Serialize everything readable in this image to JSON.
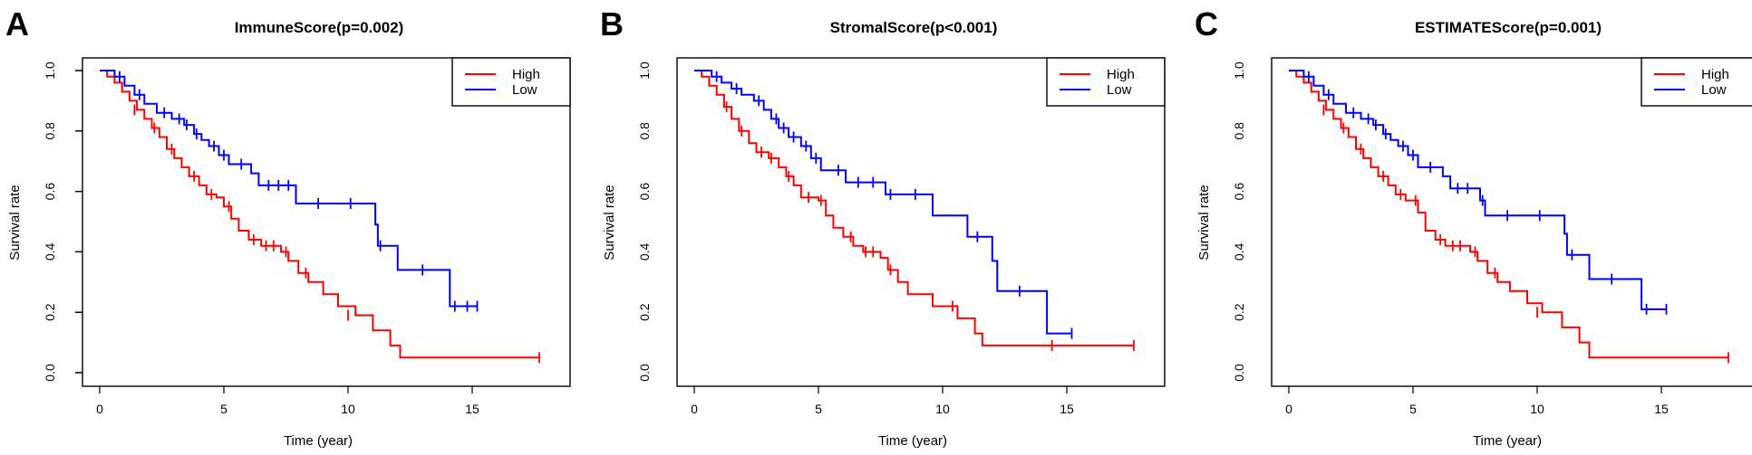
{
  "colors": {
    "high": "#FF0000",
    "low": "#0000FF",
    "axis": "#000000"
  },
  "panels": [
    {
      "letter": "A",
      "title": "ImmuneScore(p=0.002)"
    },
    {
      "letter": "B",
      "title": "StromalScore(p<0.001)"
    },
    {
      "letter": "C",
      "title": "ESTIMATEScore(p=0.001)"
    }
  ],
  "chart_data": [
    {
      "type": "line",
      "title": "ImmuneScore(p=0.002)",
      "xlabel": "Time (year)",
      "ylabel": "Survival rate",
      "xlim": [
        0,
        18
      ],
      "ylim": [
        0,
        1
      ],
      "xticks": [
        "0",
        "5",
        "10",
        "15"
      ],
      "yticks": [
        "0.0",
        "0.2",
        "0.4",
        "0.6",
        "0.8",
        "1.0"
      ],
      "legend": {
        "position": "top-right",
        "entries": [
          "High",
          "Low"
        ]
      },
      "series": [
        {
          "name": "High",
          "color": "#FF0000",
          "steps": [
            [
              0,
              1.0
            ],
            [
              0.3,
              0.98
            ],
            [
              0.6,
              0.96
            ],
            [
              0.9,
              0.93
            ],
            [
              1.2,
              0.9
            ],
            [
              1.5,
              0.87
            ],
            [
              1.8,
              0.84
            ],
            [
              2.1,
              0.81
            ],
            [
              2.4,
              0.78
            ],
            [
              2.7,
              0.74
            ],
            [
              3.0,
              0.71
            ],
            [
              3.3,
              0.68
            ],
            [
              3.6,
              0.65
            ],
            [
              4.0,
              0.62
            ],
            [
              4.3,
              0.59
            ],
            [
              4.7,
              0.58
            ],
            [
              5.0,
              0.55
            ],
            [
              5.3,
              0.51
            ],
            [
              5.6,
              0.47
            ],
            [
              6.0,
              0.44
            ],
            [
              6.5,
              0.42
            ],
            [
              7.3,
              0.4
            ],
            [
              7.6,
              0.37
            ],
            [
              8.0,
              0.33
            ],
            [
              8.4,
              0.3
            ],
            [
              9.0,
              0.26
            ],
            [
              9.6,
              0.22
            ],
            [
              10.3,
              0.19
            ],
            [
              11.0,
              0.14
            ],
            [
              11.7,
              0.09
            ],
            [
              12.1,
              0.05
            ]
          ],
          "end": 17.7,
          "censors": [
            [
              1.4,
              0.87
            ],
            [
              2.2,
              0.81
            ],
            [
              2.9,
              0.74
            ],
            [
              3.8,
              0.65
            ],
            [
              4.5,
              0.59
            ],
            [
              5.2,
              0.55
            ],
            [
              6.2,
              0.44
            ],
            [
              6.7,
              0.42
            ],
            [
              7.0,
              0.42
            ],
            [
              7.5,
              0.4
            ],
            [
              8.3,
              0.33
            ],
            [
              10.0,
              0.19
            ],
            [
              17.7,
              0.05
            ]
          ]
        },
        {
          "name": "Low",
          "color": "#0000FF",
          "steps": [
            [
              0,
              1.0
            ],
            [
              0.6,
              0.98
            ],
            [
              1.0,
              0.95
            ],
            [
              1.4,
              0.92
            ],
            [
              1.8,
              0.89
            ],
            [
              2.3,
              0.86
            ],
            [
              2.9,
              0.84
            ],
            [
              3.4,
              0.82
            ],
            [
              3.8,
              0.79
            ],
            [
              4.1,
              0.77
            ],
            [
              4.4,
              0.75
            ],
            [
              4.8,
              0.72
            ],
            [
              5.2,
              0.69
            ],
            [
              6.1,
              0.66
            ],
            [
              6.4,
              0.62
            ],
            [
              7.9,
              0.56
            ],
            [
              11.1,
              0.49
            ],
            [
              11.2,
              0.42
            ],
            [
              12.0,
              0.34
            ],
            [
              14.1,
              0.22
            ]
          ],
          "end": 15.2,
          "censors": [
            [
              0.8,
              0.98
            ],
            [
              1.6,
              0.92
            ],
            [
              2.6,
              0.86
            ],
            [
              3.2,
              0.84
            ],
            [
              3.5,
              0.82
            ],
            [
              3.9,
              0.79
            ],
            [
              4.6,
              0.75
            ],
            [
              5.0,
              0.72
            ],
            [
              5.7,
              0.69
            ],
            [
              6.8,
              0.62
            ],
            [
              7.2,
              0.62
            ],
            [
              7.6,
              0.62
            ],
            [
              8.8,
              0.56
            ],
            [
              10.1,
              0.56
            ],
            [
              11.3,
              0.42
            ],
            [
              13.0,
              0.34
            ],
            [
              14.3,
              0.22
            ],
            [
              14.8,
              0.22
            ],
            [
              15.2,
              0.22
            ]
          ]
        }
      ]
    },
    {
      "type": "line",
      "title": "StromalScore(p<0.001)",
      "xlabel": "Time (year)",
      "ylabel": "Survival rate",
      "xlim": [
        0,
        18
      ],
      "ylim": [
        0,
        1
      ],
      "xticks": [
        "0",
        "5",
        "10",
        "15"
      ],
      "yticks": [
        "0.0",
        "0.2",
        "0.4",
        "0.6",
        "0.8",
        "1.0"
      ],
      "legend": {
        "position": "top-right",
        "entries": [
          "High",
          "Low"
        ]
      },
      "series": [
        {
          "name": "High",
          "color": "#FF0000",
          "steps": [
            [
              0,
              1.0
            ],
            [
              0.3,
              0.98
            ],
            [
              0.6,
              0.95
            ],
            [
              0.9,
              0.92
            ],
            [
              1.2,
              0.88
            ],
            [
              1.5,
              0.84
            ],
            [
              1.8,
              0.8
            ],
            [
              2.2,
              0.76
            ],
            [
              2.5,
              0.73
            ],
            [
              3.0,
              0.71
            ],
            [
              3.4,
              0.68
            ],
            [
              3.7,
              0.65
            ],
            [
              4.0,
              0.62
            ],
            [
              4.3,
              0.58
            ],
            [
              5.0,
              0.57
            ],
            [
              5.3,
              0.52
            ],
            [
              5.6,
              0.48
            ],
            [
              6.0,
              0.45
            ],
            [
              6.4,
              0.42
            ],
            [
              6.8,
              0.4
            ],
            [
              7.5,
              0.38
            ],
            [
              7.8,
              0.34
            ],
            [
              8.2,
              0.3
            ],
            [
              8.6,
              0.26
            ],
            [
              9.6,
              0.22
            ],
            [
              10.6,
              0.18
            ],
            [
              11.3,
              0.13
            ],
            [
              11.6,
              0.09
            ]
          ],
          "end": 17.7,
          "censors": [
            [
              1.3,
              0.88
            ],
            [
              1.9,
              0.8
            ],
            [
              2.7,
              0.73
            ],
            [
              3.1,
              0.71
            ],
            [
              3.8,
              0.65
            ],
            [
              4.6,
              0.58
            ],
            [
              5.1,
              0.57
            ],
            [
              6.3,
              0.45
            ],
            [
              6.9,
              0.4
            ],
            [
              7.2,
              0.4
            ],
            [
              7.9,
              0.34
            ],
            [
              10.4,
              0.22
            ],
            [
              14.4,
              0.09
            ],
            [
              17.7,
              0.09
            ]
          ]
        },
        {
          "name": "Low",
          "color": "#0000FF",
          "steps": [
            [
              0,
              1.0
            ],
            [
              0.7,
              0.98
            ],
            [
              1.1,
              0.96
            ],
            [
              1.5,
              0.94
            ],
            [
              1.9,
              0.92
            ],
            [
              2.4,
              0.9
            ],
            [
              2.8,
              0.87
            ],
            [
              3.1,
              0.84
            ],
            [
              3.4,
              0.81
            ],
            [
              3.8,
              0.78
            ],
            [
              4.3,
              0.75
            ],
            [
              4.7,
              0.71
            ],
            [
              5.1,
              0.67
            ],
            [
              6.1,
              0.63
            ],
            [
              7.7,
              0.59
            ],
            [
              9.6,
              0.52
            ],
            [
              11.0,
              0.45
            ],
            [
              12.0,
              0.37
            ],
            [
              12.2,
              0.27
            ],
            [
              14.2,
              0.13
            ]
          ],
          "end": 15.2,
          "censors": [
            [
              0.9,
              0.98
            ],
            [
              1.7,
              0.94
            ],
            [
              2.6,
              0.9
            ],
            [
              3.3,
              0.84
            ],
            [
              3.6,
              0.81
            ],
            [
              4.0,
              0.78
            ],
            [
              4.5,
              0.75
            ],
            [
              4.9,
              0.71
            ],
            [
              5.8,
              0.67
            ],
            [
              6.6,
              0.63
            ],
            [
              7.2,
              0.63
            ],
            [
              7.9,
              0.59
            ],
            [
              8.9,
              0.59
            ],
            [
              11.4,
              0.45
            ],
            [
              13.1,
              0.27
            ],
            [
              15.2,
              0.13
            ]
          ]
        }
      ]
    },
    {
      "type": "line",
      "title": "ESTIMATEScore(p=0.001)",
      "xlabel": "Time (year)",
      "ylabel": "Survival rate",
      "xlim": [
        0,
        18
      ],
      "ylim": [
        0,
        1
      ],
      "xticks": [
        "0",
        "5",
        "10",
        "15"
      ],
      "yticks": [
        "0.0",
        "0.2",
        "0.4",
        "0.6",
        "0.8",
        "1.0"
      ],
      "legend": {
        "position": "top-right",
        "entries": [
          "High",
          "Low"
        ]
      },
      "series": [
        {
          "name": "High",
          "color": "#FF0000",
          "steps": [
            [
              0,
              1.0
            ],
            [
              0.3,
              0.98
            ],
            [
              0.6,
              0.96
            ],
            [
              0.9,
              0.93
            ],
            [
              1.2,
              0.9
            ],
            [
              1.5,
              0.87
            ],
            [
              1.8,
              0.84
            ],
            [
              2.1,
              0.81
            ],
            [
              2.4,
              0.78
            ],
            [
              2.7,
              0.74
            ],
            [
              3.0,
              0.71
            ],
            [
              3.3,
              0.68
            ],
            [
              3.6,
              0.65
            ],
            [
              4.0,
              0.62
            ],
            [
              4.3,
              0.59
            ],
            [
              4.7,
              0.57
            ],
            [
              5.2,
              0.53
            ],
            [
              5.5,
              0.47
            ],
            [
              5.9,
              0.44
            ],
            [
              6.3,
              0.42
            ],
            [
              7.3,
              0.4
            ],
            [
              7.6,
              0.37
            ],
            [
              8.0,
              0.33
            ],
            [
              8.4,
              0.3
            ],
            [
              8.9,
              0.27
            ],
            [
              9.6,
              0.23
            ],
            [
              10.2,
              0.2
            ],
            [
              11.0,
              0.15
            ],
            [
              11.7,
              0.1
            ],
            [
              12.1,
              0.05
            ]
          ],
          "end": 17.7,
          "censors": [
            [
              1.4,
              0.87
            ],
            [
              2.2,
              0.81
            ],
            [
              2.9,
              0.74
            ],
            [
              3.8,
              0.65
            ],
            [
              4.5,
              0.59
            ],
            [
              5.1,
              0.57
            ],
            [
              6.1,
              0.44
            ],
            [
              6.6,
              0.42
            ],
            [
              6.9,
              0.42
            ],
            [
              7.5,
              0.4
            ],
            [
              8.3,
              0.33
            ],
            [
              10.0,
              0.2
            ],
            [
              17.7,
              0.05
            ]
          ]
        },
        {
          "name": "Low",
          "color": "#0000FF",
          "steps": [
            [
              0,
              1.0
            ],
            [
              0.6,
              0.98
            ],
            [
              1.0,
              0.95
            ],
            [
              1.4,
              0.92
            ],
            [
              1.8,
              0.89
            ],
            [
              2.3,
              0.86
            ],
            [
              2.9,
              0.84
            ],
            [
              3.4,
              0.82
            ],
            [
              3.8,
              0.79
            ],
            [
              4.1,
              0.77
            ],
            [
              4.4,
              0.75
            ],
            [
              4.8,
              0.72
            ],
            [
              5.2,
              0.68
            ],
            [
              6.2,
              0.65
            ],
            [
              6.5,
              0.61
            ],
            [
              7.7,
              0.57
            ],
            [
              7.9,
              0.52
            ],
            [
              11.1,
              0.46
            ],
            [
              11.2,
              0.39
            ],
            [
              12.1,
              0.31
            ],
            [
              14.2,
              0.21
            ]
          ],
          "end": 15.2,
          "censors": [
            [
              0.8,
              0.98
            ],
            [
              1.6,
              0.92
            ],
            [
              2.6,
              0.86
            ],
            [
              3.2,
              0.84
            ],
            [
              3.5,
              0.82
            ],
            [
              3.9,
              0.79
            ],
            [
              4.6,
              0.75
            ],
            [
              5.0,
              0.72
            ],
            [
              5.7,
              0.68
            ],
            [
              6.8,
              0.61
            ],
            [
              7.2,
              0.61
            ],
            [
              7.8,
              0.57
            ],
            [
              8.8,
              0.52
            ],
            [
              10.1,
              0.52
            ],
            [
              11.4,
              0.39
            ],
            [
              13.0,
              0.31
            ],
            [
              14.4,
              0.21
            ],
            [
              15.2,
              0.21
            ]
          ]
        }
      ]
    }
  ]
}
